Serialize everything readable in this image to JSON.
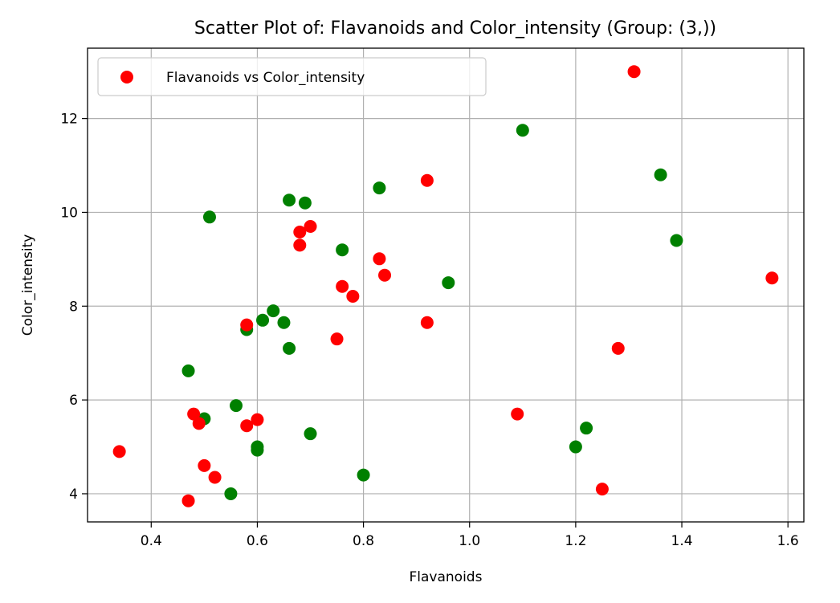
{
  "chart_data": {
    "type": "scatter",
    "title": "Scatter Plot of: Flavanoids and Color_intensity (Group: (3,))",
    "xlabel": "Flavanoids",
    "ylabel": "Color_intensity",
    "xlim": [
      0.28,
      1.63
    ],
    "ylim": [
      3.4,
      13.5
    ],
    "xticks": [
      0.4,
      0.6,
      0.8,
      1.0,
      1.2,
      1.4,
      1.6
    ],
    "xtick_labels": [
      "0.4",
      "0.6",
      "0.8",
      "1.0",
      "1.2",
      "1.4",
      "1.6"
    ],
    "yticks": [
      4,
      6,
      8,
      10,
      12
    ],
    "ytick_labels": [
      "4",
      "6",
      "8",
      "10",
      "12"
    ],
    "grid": true,
    "legend": {
      "position": "top-left",
      "entries": [
        "Flavanoids vs Color_intensity"
      ]
    },
    "series": [
      {
        "name": "Flavanoids vs Color_intensity",
        "color": "#ff0000",
        "points": [
          [
            1.31,
            13.0
          ],
          [
            0.92,
            10.68
          ],
          [
            0.7,
            9.7
          ],
          [
            0.68,
            9.58
          ],
          [
            0.68,
            9.3
          ],
          [
            0.83,
            9.01
          ],
          [
            0.84,
            8.66
          ],
          [
            1.57,
            8.6
          ],
          [
            0.76,
            8.42
          ],
          [
            0.78,
            8.21
          ],
          [
            0.92,
            7.65
          ],
          [
            0.58,
            7.6
          ],
          [
            0.75,
            7.3
          ],
          [
            1.28,
            7.1
          ],
          [
            0.48,
            5.7
          ],
          [
            1.09,
            5.7
          ],
          [
            0.6,
            5.58
          ],
          [
            0.49,
            5.5
          ],
          [
            0.58,
            5.45
          ],
          [
            0.34,
            4.9
          ],
          [
            0.5,
            4.6
          ],
          [
            0.52,
            4.35
          ],
          [
            1.25,
            4.1
          ],
          [
            0.47,
            3.85
          ]
        ]
      },
      {
        "color": "#008000",
        "points": [
          [
            1.1,
            11.75
          ],
          [
            1.36,
            10.8
          ],
          [
            0.83,
            10.52
          ],
          [
            0.66,
            10.26
          ],
          [
            0.69,
            10.2
          ],
          [
            0.51,
            9.9
          ],
          [
            1.39,
            9.4
          ],
          [
            0.76,
            9.2
          ],
          [
            0.96,
            8.5
          ],
          [
            0.63,
            7.9
          ],
          [
            0.61,
            7.7
          ],
          [
            0.65,
            7.65
          ],
          [
            0.58,
            7.5
          ],
          [
            0.66,
            7.1
          ],
          [
            0.47,
            6.62
          ],
          [
            0.56,
            5.88
          ],
          [
            0.5,
            5.6
          ],
          [
            1.22,
            5.4
          ],
          [
            0.7,
            5.28
          ],
          [
            0.6,
            5.0
          ],
          [
            1.2,
            5.0
          ],
          [
            0.6,
            4.93
          ],
          [
            0.8,
            4.4
          ],
          [
            0.55,
            4.0
          ]
        ]
      }
    ]
  }
}
